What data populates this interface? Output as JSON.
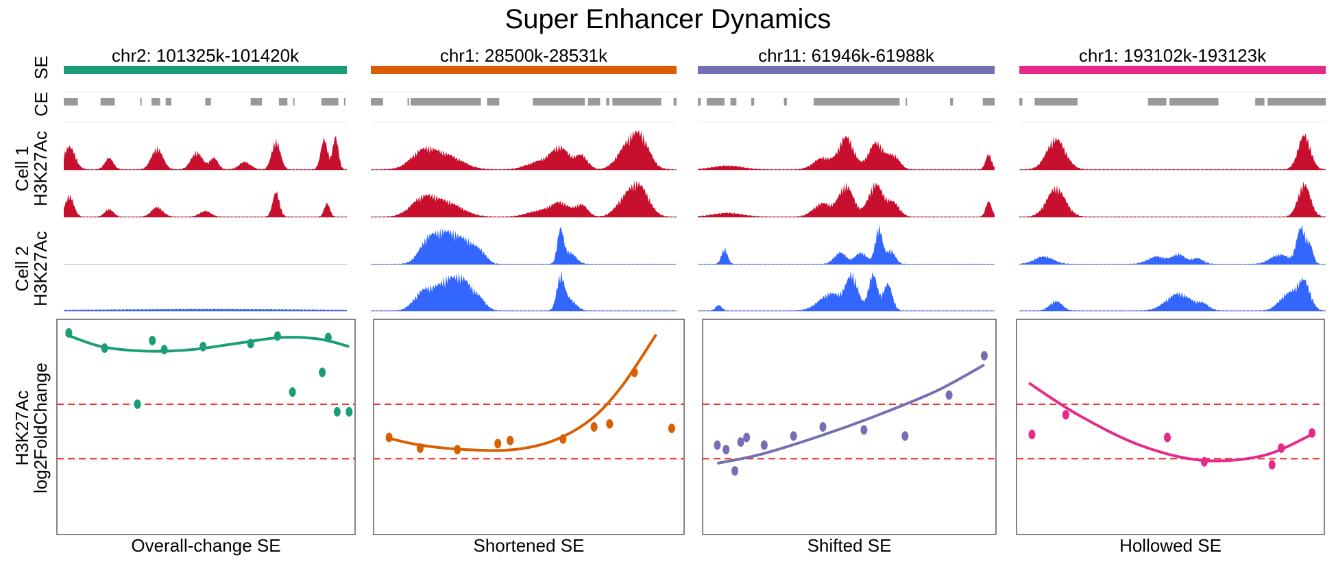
{
  "title": "Super Enhancer Dynamics",
  "track_labels": {
    "se": "SE",
    "ce": "CE",
    "cell1": "Cell 1\nH3K27Ac",
    "cell2": "Cell 2\nH3K27Ac"
  },
  "colors": {
    "h3k_cell1": "#c8102e",
    "h3k_cell2": "#3366ff",
    "ce": "#999999",
    "threshold": "#ee2222"
  },
  "chart_data": [
    {
      "type": "scatter",
      "region": "chr2: 101325k-101420k",
      "category": "Overall-change SE",
      "color": "#1b9e77",
      "ylabel": "H3K27Ac\nlog2FoldChange",
      "y_thresholds": [
        0.9,
        -0.9
      ],
      "ylim": [
        -3.4,
        3.7
      ],
      "xlim": [
        0,
        1
      ],
      "points": [
        [
          0.04,
          3.25
        ],
        [
          0.16,
          2.75
        ],
        [
          0.27,
          0.9
        ],
        [
          0.32,
          3.0
        ],
        [
          0.36,
          2.7
        ],
        [
          0.49,
          2.8
        ],
        [
          0.65,
          2.9
        ],
        [
          0.74,
          3.15
        ],
        [
          0.79,
          1.3
        ],
        [
          0.89,
          1.95
        ],
        [
          0.91,
          3.1
        ],
        [
          0.94,
          0.65
        ],
        [
          0.98,
          0.65
        ]
      ],
      "fit": [
        [
          0.03,
          3.2
        ],
        [
          0.15,
          2.8
        ],
        [
          0.3,
          2.65
        ],
        [
          0.45,
          2.7
        ],
        [
          0.6,
          2.9
        ],
        [
          0.75,
          3.1
        ],
        [
          0.88,
          3.05
        ],
        [
          0.98,
          2.8
        ]
      ],
      "ce_blocks": [
        [
          0.0,
          0.05
        ],
        [
          0.13,
          0.18
        ],
        [
          0.27,
          0.275
        ],
        [
          0.31,
          0.34
        ],
        [
          0.36,
          0.38
        ],
        [
          0.5,
          0.52
        ],
        [
          0.66,
          0.7
        ],
        [
          0.76,
          0.79
        ],
        [
          0.81,
          0.815
        ],
        [
          0.91,
          0.97
        ],
        [
          0.99,
          0.995
        ]
      ],
      "tracks": [
        {
          "peaks": [
            [
              0.02,
              0.6,
              0.02
            ],
            [
              0.16,
              0.3,
              0.015
            ],
            [
              0.33,
              0.55,
              0.02
            ],
            [
              0.47,
              0.45,
              0.02
            ],
            [
              0.53,
              0.3,
              0.015
            ],
            [
              0.75,
              0.75,
              0.015
            ],
            [
              0.92,
              0.8,
              0.012
            ],
            [
              0.96,
              0.85,
              0.01
            ],
            [
              0.64,
              0.2,
              0.02
            ]
          ]
        },
        {
          "peaks": [
            [
              0.02,
              0.55,
              0.015
            ],
            [
              0.16,
              0.2,
              0.015
            ],
            [
              0.33,
              0.25,
              0.02
            ],
            [
              0.5,
              0.15,
              0.02
            ],
            [
              0.75,
              0.65,
              0.012
            ],
            [
              0.93,
              0.35,
              0.01
            ]
          ]
        },
        {
          "peaks": []
        },
        {
          "peaks": [
            [
              0.5,
              0.04,
              0.4
            ]
          ]
        }
      ]
    },
    {
      "type": "scatter",
      "region": "chr1: 28500k-28531k",
      "category": "Shortened SE",
      "color": "#d95f02",
      "ylabel": "",
      "y_thresholds": [
        0.9,
        -0.9
      ],
      "ylim": [
        -3.4,
        3.7
      ],
      "xlim": [
        0,
        1
      ],
      "points": [
        [
          0.05,
          -0.2
        ],
        [
          0.15,
          -0.55
        ],
        [
          0.27,
          -0.6
        ],
        [
          0.4,
          -0.4
        ],
        [
          0.44,
          -0.3
        ],
        [
          0.61,
          -0.25
        ],
        [
          0.71,
          0.15
        ],
        [
          0.76,
          0.25
        ],
        [
          0.84,
          1.95
        ],
        [
          0.96,
          0.1
        ]
      ],
      "fit": [
        [
          0.04,
          -0.2
        ],
        [
          0.15,
          -0.45
        ],
        [
          0.3,
          -0.6
        ],
        [
          0.45,
          -0.6
        ],
        [
          0.58,
          -0.3
        ],
        [
          0.7,
          0.4
        ],
        [
          0.8,
          1.5
        ],
        [
          0.91,
          3.2
        ]
      ],
      "ce_blocks": [
        [
          0.0,
          0.04
        ],
        [
          0.12,
          0.125
        ],
        [
          0.13,
          0.36
        ],
        [
          0.38,
          0.42
        ],
        [
          0.53,
          0.7
        ],
        [
          0.71,
          0.75
        ],
        [
          0.77,
          0.78
        ],
        [
          0.79,
          0.95
        ],
        [
          0.99,
          1.0
        ]
      ],
      "tracks": [
        {
          "peaks": [
            [
              0.17,
              0.45,
              0.04
            ],
            [
              0.25,
              0.35,
              0.05
            ],
            [
              0.55,
              0.2,
              0.04
            ],
            [
              0.62,
              0.55,
              0.03
            ],
            [
              0.69,
              0.35,
              0.02
            ],
            [
              0.88,
              0.85,
              0.03
            ],
            [
              0.83,
              0.45,
              0.03
            ]
          ]
        },
        {
          "peaks": [
            [
              0.17,
              0.45,
              0.04
            ],
            [
              0.25,
              0.35,
              0.05
            ],
            [
              0.55,
              0.15,
              0.04
            ],
            [
              0.62,
              0.35,
              0.03
            ],
            [
              0.69,
              0.3,
              0.02
            ],
            [
              0.88,
              0.75,
              0.03
            ],
            [
              0.83,
              0.4,
              0.03
            ]
          ]
        },
        {
          "peaks": [
            [
              0.19,
              0.65,
              0.03
            ],
            [
              0.25,
              0.7,
              0.03
            ],
            [
              0.31,
              0.55,
              0.03
            ],
            [
              0.36,
              0.25,
              0.02
            ],
            [
              0.62,
              0.85,
              0.01
            ],
            [
              0.65,
              0.3,
              0.02
            ]
          ]
        },
        {
          "peaks": [
            [
              0.17,
              0.45,
              0.03
            ],
            [
              0.25,
              0.75,
              0.04
            ],
            [
              0.31,
              0.55,
              0.03
            ],
            [
              0.36,
              0.2,
              0.02
            ],
            [
              0.62,
              0.85,
              0.012
            ],
            [
              0.65,
              0.3,
              0.02
            ]
          ]
        }
      ]
    },
    {
      "type": "scatter",
      "region": "chr11: 61946k-61988k",
      "category": "Shifted SE",
      "color": "#7570b3",
      "ylabel": "",
      "y_thresholds": [
        0.9,
        -0.9
      ],
      "ylim": [
        -3.4,
        3.7
      ],
      "xlim": [
        0,
        1
      ],
      "points": [
        [
          0.05,
          -0.45
        ],
        [
          0.08,
          -0.6
        ],
        [
          0.11,
          -1.3
        ],
        [
          0.13,
          -0.35
        ],
        [
          0.15,
          -0.2
        ],
        [
          0.21,
          -0.45
        ],
        [
          0.31,
          -0.15
        ],
        [
          0.41,
          0.15
        ],
        [
          0.55,
          0.05
        ],
        [
          0.69,
          -0.15
        ],
        [
          0.84,
          1.2
        ],
        [
          0.96,
          2.5
        ]
      ],
      "fit": [
        [
          0.05,
          -1.05
        ],
        [
          0.2,
          -0.75
        ],
        [
          0.4,
          -0.15
        ],
        [
          0.6,
          0.55
        ],
        [
          0.8,
          1.35
        ],
        [
          0.96,
          2.2
        ]
      ],
      "ce_blocks": [
        [
          0.0,
          0.01
        ],
        [
          0.03,
          0.09
        ],
        [
          0.11,
          0.13
        ],
        [
          0.18,
          0.19
        ],
        [
          0.29,
          0.3
        ],
        [
          0.39,
          0.68
        ],
        [
          0.7,
          0.705
        ],
        [
          0.85,
          0.86
        ],
        [
          0.96,
          1.0
        ]
      ],
      "tracks": [
        {
          "peaks": [
            [
              0.1,
              0.1,
              0.05
            ],
            [
              0.5,
              0.85,
              0.025
            ],
            [
              0.6,
              0.7,
              0.025
            ],
            [
              0.66,
              0.35,
              0.02
            ],
            [
              0.42,
              0.3,
              0.03
            ],
            [
              0.98,
              0.4,
              0.01
            ]
          ]
        },
        {
          "peaks": [
            [
              0.1,
              0.1,
              0.05
            ],
            [
              0.5,
              0.8,
              0.025
            ],
            [
              0.6,
              0.85,
              0.025
            ],
            [
              0.66,
              0.35,
              0.02
            ],
            [
              0.42,
              0.35,
              0.03
            ],
            [
              0.98,
              0.4,
              0.01
            ]
          ]
        },
        {
          "peaks": [
            [
              0.09,
              0.4,
              0.01
            ],
            [
              0.48,
              0.3,
              0.02
            ],
            [
              0.55,
              0.3,
              0.02
            ],
            [
              0.61,
              0.95,
              0.012
            ],
            [
              0.65,
              0.35,
              0.015
            ]
          ]
        },
        {
          "peaks": [
            [
              0.07,
              0.15,
              0.01
            ],
            [
              0.45,
              0.45,
              0.04
            ],
            [
              0.52,
              0.85,
              0.02
            ],
            [
              0.59,
              0.95,
              0.015
            ],
            [
              0.64,
              0.7,
              0.015
            ]
          ]
        }
      ]
    },
    {
      "type": "scatter",
      "region": "chr1: 193102k-193123k",
      "category": "Hollowed SE",
      "color": "#e7298a",
      "ylabel": "",
      "y_thresholds": [
        0.9,
        -0.9
      ],
      "ylim": [
        -3.4,
        3.7
      ],
      "xlim": [
        0,
        1
      ],
      "points": [
        [
          0.05,
          -0.1
        ],
        [
          0.16,
          0.55
        ],
        [
          0.49,
          -0.2
        ],
        [
          0.61,
          -1.0
        ],
        [
          0.83,
          -1.1
        ],
        [
          0.86,
          -0.55
        ],
        [
          0.96,
          -0.05
        ]
      ],
      "fit": [
        [
          0.04,
          1.6
        ],
        [
          0.2,
          0.55
        ],
        [
          0.4,
          -0.45
        ],
        [
          0.6,
          -0.95
        ],
        [
          0.8,
          -0.8
        ],
        [
          0.96,
          -0.1
        ]
      ],
      "ce_blocks": [
        [
          0.0,
          0.01
        ],
        [
          0.05,
          0.19
        ],
        [
          0.42,
          0.48
        ],
        [
          0.49,
          0.65
        ],
        [
          0.77,
          0.8
        ],
        [
          0.81,
          1.0
        ]
      ],
      "tracks": [
        {
          "peaks": [
            [
              0.12,
              0.8,
              0.03
            ],
            [
              0.93,
              0.9,
              0.02
            ]
          ]
        },
        {
          "peaks": [
            [
              0.12,
              0.75,
              0.03
            ],
            [
              0.93,
              0.85,
              0.02
            ]
          ]
        },
        {
          "peaks": [
            [
              0.08,
              0.2,
              0.03
            ],
            [
              0.45,
              0.2,
              0.03
            ],
            [
              0.52,
              0.25,
              0.02
            ],
            [
              0.58,
              0.15,
              0.02
            ],
            [
              0.85,
              0.25,
              0.03
            ],
            [
              0.92,
              0.95,
              0.015
            ],
            [
              0.95,
              0.4,
              0.01
            ]
          ]
        },
        {
          "peaks": [
            [
              0.12,
              0.25,
              0.02
            ],
            [
              0.52,
              0.45,
              0.04
            ],
            [
              0.6,
              0.15,
              0.02
            ],
            [
              0.88,
              0.45,
              0.03
            ],
            [
              0.93,
              0.7,
              0.02
            ]
          ]
        }
      ]
    }
  ]
}
